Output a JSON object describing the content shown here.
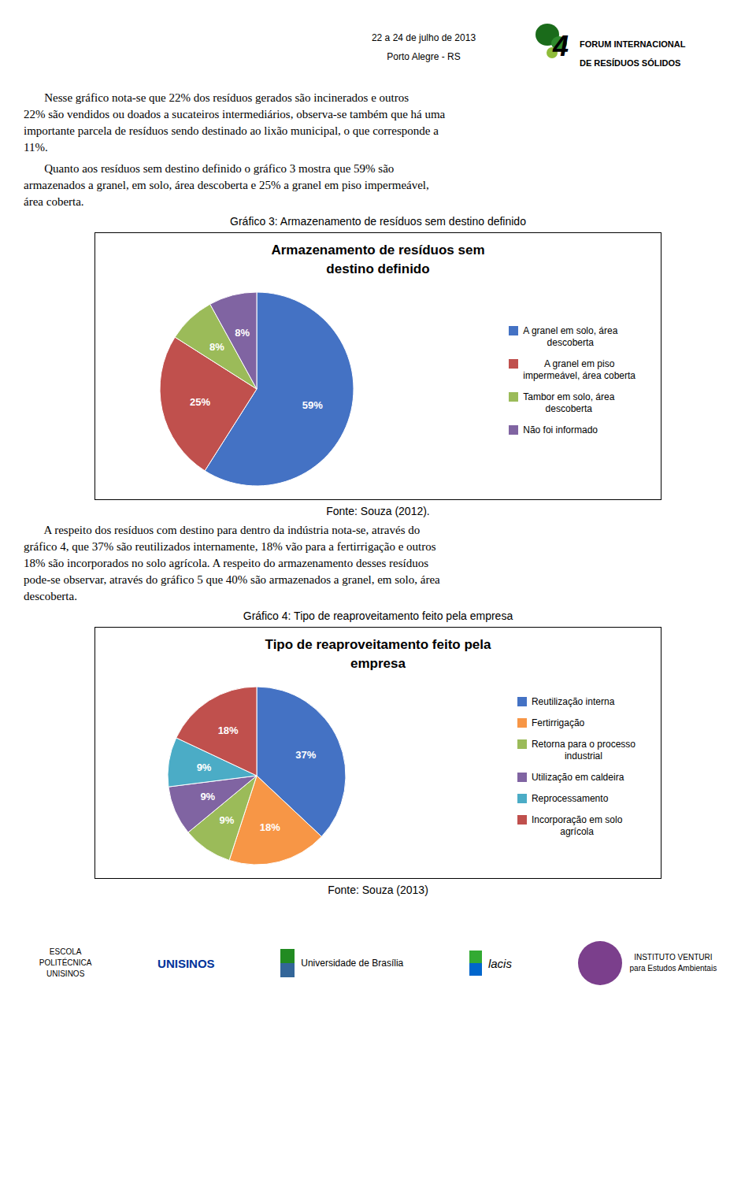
{
  "header": {
    "lines": [
      "22 a 24 de julho de 2013",
      "Porto Alegre - RS"
    ],
    "numeral": "4",
    "forum": [
      "FORUM INTERNACIONAL",
      "DE RESÍDUOS SÓLIDOS"
    ]
  },
  "paragraphs": [
    [
      "       Nesse gráfico nota-se que 22% dos resíduos gerados são incinerados e outros",
      "22% são vendidos ou doados a sucateiros intermediários, observa-se também que há uma",
      "importante parcela de resíduos sendo destinado ao lixão municipal, o que corresponde a",
      "11%."
    ],
    [
      "       Quanto aos resíduos sem destino definido o gráfico 3 mostra que 59% são",
      "armazenados a granel, em solo, área descoberta e 25% a granel em piso impermeável,",
      "área coberta."
    ],
    [
      "       A respeito dos resíduos com destino para dentro da indústria nota-se, através do",
      "gráfico 4, que 37% são reutilizados internamente, 18% vão para a fertirrigação e outros",
      "18% são incorporados no solo agrícola. A respeito do armazenamento desses resíduos",
      "pode-se observar, através do gráfico 5 que 40% são armazenados a granel, em solo, área",
      "descoberta."
    ]
  ],
  "chart_data": [
    {
      "type": "pie",
      "caption": "Gráfico 3: Armazenamento de resíduos sem destino definido",
      "title": "Armazenamento de resíduos sem\ndestino definido",
      "categories": [
        "A granel em solo, área\ndescoberta",
        "A granel em piso\nimpermeável, área coberta",
        "Tambor em solo, área\ndescoberta",
        "Não foi informado"
      ],
      "values": [
        59,
        25,
        8,
        8
      ],
      "value_labels": [
        "59%",
        "25%",
        "8%",
        "8%"
      ],
      "colors": [
        "#4472C4",
        "#C0504D",
        "#9BBB59",
        "#8064A2"
      ],
      "data_labels": true,
      "legend": "right",
      "source": "Fonte: Souza (2012)."
    },
    {
      "type": "pie",
      "caption": "Gráfico 4: Tipo de reaproveitamento feito pela empresa",
      "title": "Tipo de reaproveitamento feito pela\nempresa",
      "categories": [
        "Reutilização interna",
        "Fertirrigação",
        "Retorna para o processo\nindustrial",
        "Utilização em caldeira",
        "Reprocessamento",
        "Incorporação em solo\nagrícola"
      ],
      "values": [
        37,
        18,
        9,
        9,
        9,
        18
      ],
      "value_labels": [
        "37%",
        "18%",
        "9%",
        "9%",
        "9%",
        "18%"
      ],
      "colors": [
        "#4472C4",
        "#F79646",
        "#9BBB59",
        "#8064A2",
        "#4BACC6",
        "#C0504D"
      ],
      "data_labels": true,
      "legend": "right",
      "source": "Fonte: Souza (2013)"
    }
  ],
  "footer": [
    "ESCOLA\nPOLITÉCNICA\nUNISINOS",
    "UNISINOS",
    "Universidade de Brasília",
    "lacis",
    "INSTITUTO VENTURI\npara Estudos Ambientais"
  ]
}
